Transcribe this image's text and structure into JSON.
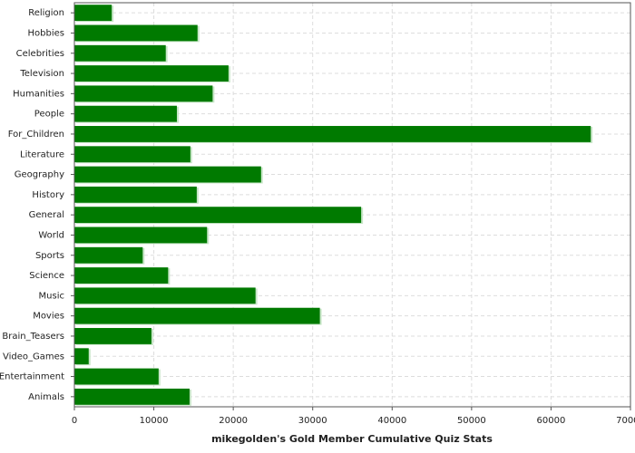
{
  "chart_data": {
    "type": "barh",
    "title": "mikegolden's Gold Member Cumulative Quiz Stats",
    "categories": [
      "Religion",
      "Hobbies",
      "Celebrities",
      "Television",
      "Humanities",
      "People",
      "For_Children",
      "Literature",
      "Geography",
      "History",
      "General",
      "World",
      "Sports",
      "Science",
      "Music",
      "Movies",
      "Brain_Teasers",
      "Video_Games",
      "Entertainment",
      "Animals"
    ],
    "values": [
      4700,
      15500,
      11500,
      19400,
      17400,
      12900,
      65000,
      14600,
      23500,
      15400,
      36100,
      16700,
      8600,
      11800,
      22800,
      30900,
      9700,
      1800,
      10600,
      14500
    ],
    "color": "#007a00",
    "xlim": [
      0,
      70000
    ],
    "xticks": [
      0,
      10000,
      20000,
      30000,
      40000,
      50000,
      60000,
      70000
    ],
    "grid": true
  }
}
